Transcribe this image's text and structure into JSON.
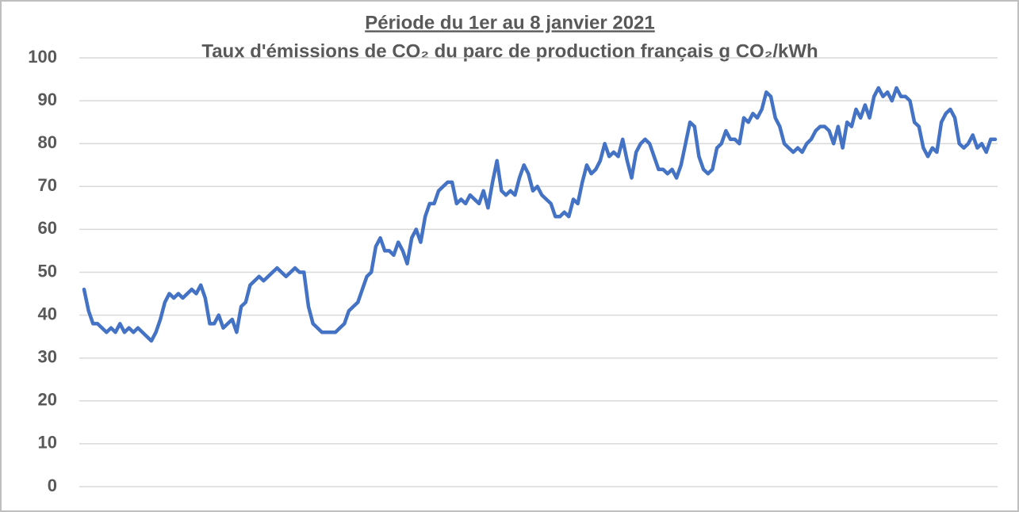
{
  "chart_data": {
    "type": "line",
    "title": "Période du 1er au 8 janvier 2021",
    "subtitle": "Taux d'émissions de CO₂ du parc de production français  g CO₂/kWh",
    "color": "#4472c4",
    "values": [
      46,
      41,
      38,
      38,
      37,
      36,
      37,
      36,
      38,
      36,
      37,
      36,
      37,
      36,
      35,
      34,
      36,
      39,
      43,
      45,
      44,
      45,
      44,
      45,
      46,
      45,
      47,
      44,
      38,
      38,
      40,
      37,
      38,
      39,
      36,
      42,
      43,
      47,
      48,
      49,
      48,
      49,
      50,
      51,
      50,
      49,
      50,
      51,
      50,
      50,
      42,
      38,
      37,
      36,
      36,
      36,
      36,
      37,
      38,
      41,
      42,
      43,
      46,
      49,
      50,
      56,
      58,
      55,
      55,
      54,
      57,
      55,
      52,
      58,
      60,
      57,
      63,
      66,
      66,
      69,
      70,
      71,
      71,
      66,
      67,
      66,
      68,
      67,
      66,
      69,
      65,
      71,
      76,
      69,
      68,
      69,
      68,
      72,
      75,
      73,
      69,
      70,
      68,
      67,
      66,
      63,
      63,
      64,
      63,
      67,
      66,
      71,
      75,
      73,
      74,
      76,
      80,
      77,
      78,
      77,
      81,
      76,
      72,
      78,
      80,
      81,
      80,
      77,
      74,
      74,
      73,
      74,
      72,
      75,
      80,
      85,
      84,
      77,
      74,
      73,
      74,
      79,
      80,
      83,
      81,
      81,
      80,
      86,
      85,
      87,
      86,
      88,
      92,
      91,
      86,
      84,
      80,
      79,
      78,
      79,
      78,
      80,
      81,
      83,
      84,
      84,
      83,
      80,
      84,
      79,
      85,
      84,
      88,
      86,
      89,
      86,
      91,
      93,
      91,
      92,
      90,
      93,
      91,
      91,
      90,
      85,
      84,
      79,
      77,
      79,
      78,
      85,
      87,
      88,
      86,
      80,
      79,
      80,
      82,
      79,
      80,
      78,
      81,
      81
    ],
    "ylim": [
      0,
      100
    ],
    "yticks": [
      0,
      10,
      20,
      30,
      40,
      50,
      60,
      70,
      80,
      90,
      100
    ],
    "grid": true
  }
}
